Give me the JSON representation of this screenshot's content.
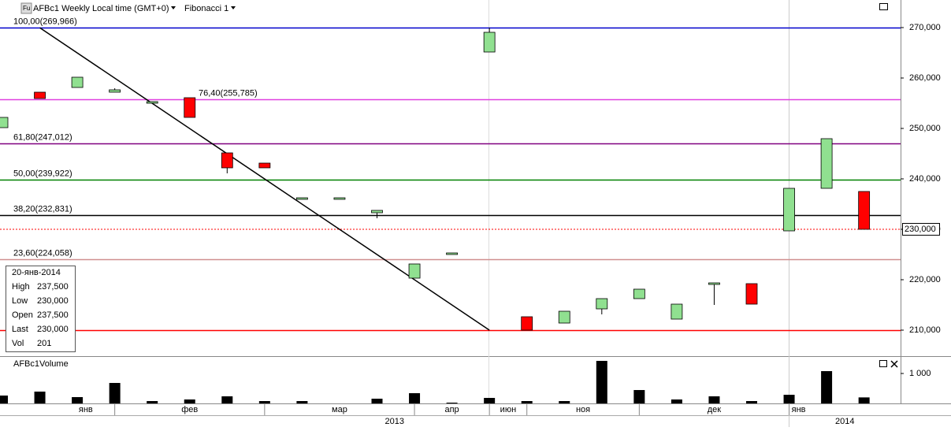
{
  "ui": {
    "title": "AFBc1 Weekly Local time (GMT+0)",
    "study": "Fibonacci 1",
    "icon": "Fu",
    "volume_title": "AFBc1Volume",
    "info": {
      "date": "20-янв-2014",
      "rows": [
        [
          "High",
          "237,500"
        ],
        [
          "Low",
          "230,000"
        ],
        [
          "Open",
          "237,500"
        ],
        [
          "Last",
          "230,000"
        ],
        [
          "Vol",
          "201"
        ]
      ]
    }
  },
  "chart_data": [
    {
      "type": "candlestick",
      "categories": [
        null,
        null,
        null,
        null,
        null,
        null,
        null,
        null,
        null,
        null,
        null,
        null,
        null,
        null,
        null,
        null,
        null,
        null,
        null,
        null,
        null,
        null,
        null,
        null
      ],
      "open": [
        250156,
        257188,
        258125,
        257188,
        255000,
        256094,
        245156,
        243125,
        235938,
        235938,
        233281,
        220313,
        225000,
        265156,
        212656,
        211406,
        214219,
        216250,
        212188,
        219063,
        219219,
        229688,
        238125,
        237500
      ],
      "high": [
        252188,
        257188,
        260156,
        257969,
        255313,
        256094,
        245156,
        243125,
        236250,
        236250,
        233750,
        223125,
        225313,
        269966,
        212656,
        213750,
        216250,
        218125,
        215156,
        219375,
        219219,
        238125,
        247969,
        237500
      ],
      "low": [
        250156,
        255938,
        258125,
        257188,
        255000,
        252188,
        241094,
        242188,
        235938,
        235938,
        232188,
        220313,
        225000,
        265156,
        210000,
        211406,
        213125,
        216250,
        212188,
        215000,
        215156,
        229688,
        238125,
        230000
      ],
      "close": [
        252188,
        255938,
        260156,
        257656,
        255313,
        252188,
        242188,
        242188,
        236250,
        236250,
        233750,
        223125,
        225313,
        269063,
        210000,
        213750,
        216250,
        218125,
        215156,
        219375,
        215156,
        238125,
        247969,
        230000
      ],
      "up_color": "#90e090",
      "down_color": "#ff0000",
      "ylim": [
        204844,
        275469
      ],
      "yticks": [
        {
          "value": 210000,
          "label": "210,000"
        },
        {
          "value": 220000,
          "label": "220,000"
        },
        {
          "value": 230000,
          "label": "230,000"
        },
        {
          "value": 240000,
          "label": "240,000"
        },
        {
          "value": 250000,
          "label": "250,000"
        },
        {
          "value": 260000,
          "label": "260,000"
        },
        {
          "value": 270000,
          "label": "270,000"
        }
      ],
      "last_price": {
        "value": 230000,
        "label": "230,000"
      },
      "fibonacci": [
        {
          "label": "100,00(269,966)",
          "value": 269966,
          "color": "#0000cc",
          "label_color": "#0000cc"
        },
        {
          "label": "76,40(255,785)",
          "value": 255785,
          "color": "#e040e0",
          "label_color": "#e040e0"
        },
        {
          "label": "61,80(247,012)",
          "value": 247012,
          "color": "#800080",
          "label_color": "#800080"
        },
        {
          "label": "50,00(239,922)",
          "value": 239922,
          "color": "#008000",
          "label_color": "#008000"
        },
        {
          "label": "38,20(232,831)",
          "value": 232831,
          "color": "#000000",
          "label_color": "#000000"
        },
        {
          "label": "23,60(224,058)",
          "value": 224058,
          "color": "#d09090",
          "label_color": "#c06060"
        },
        {
          "value": 210000,
          "color": "#ff0000"
        }
      ],
      "trendline": {
        "start": [
          1,
          269966
        ],
        "end": [
          13,
          210000
        ]
      },
      "months": [
        "янв",
        "фев",
        "мар",
        "апр",
        "июн",
        "ноя",
        "дек",
        "янв"
      ],
      "month_starts": [
        0,
        3,
        7,
        11,
        13,
        14,
        17,
        21
      ],
      "years": [
        "2013",
        "2014"
      ],
      "year_starts": [
        0,
        21
      ]
    },
    {
      "type": "volume",
      "values": [
        263,
        395,
        211,
        684,
        79,
        132,
        237,
        79,
        79,
        0,
        158,
        342,
        26,
        184,
        79,
        79,
        1421,
        447,
        132,
        237,
        79,
        289,
        1079,
        201
      ],
      "color": "#000000",
      "ylim": [
        0,
        1553
      ],
      "yticks": [
        {
          "value": 1000,
          "label": "1 000"
        }
      ]
    }
  ]
}
